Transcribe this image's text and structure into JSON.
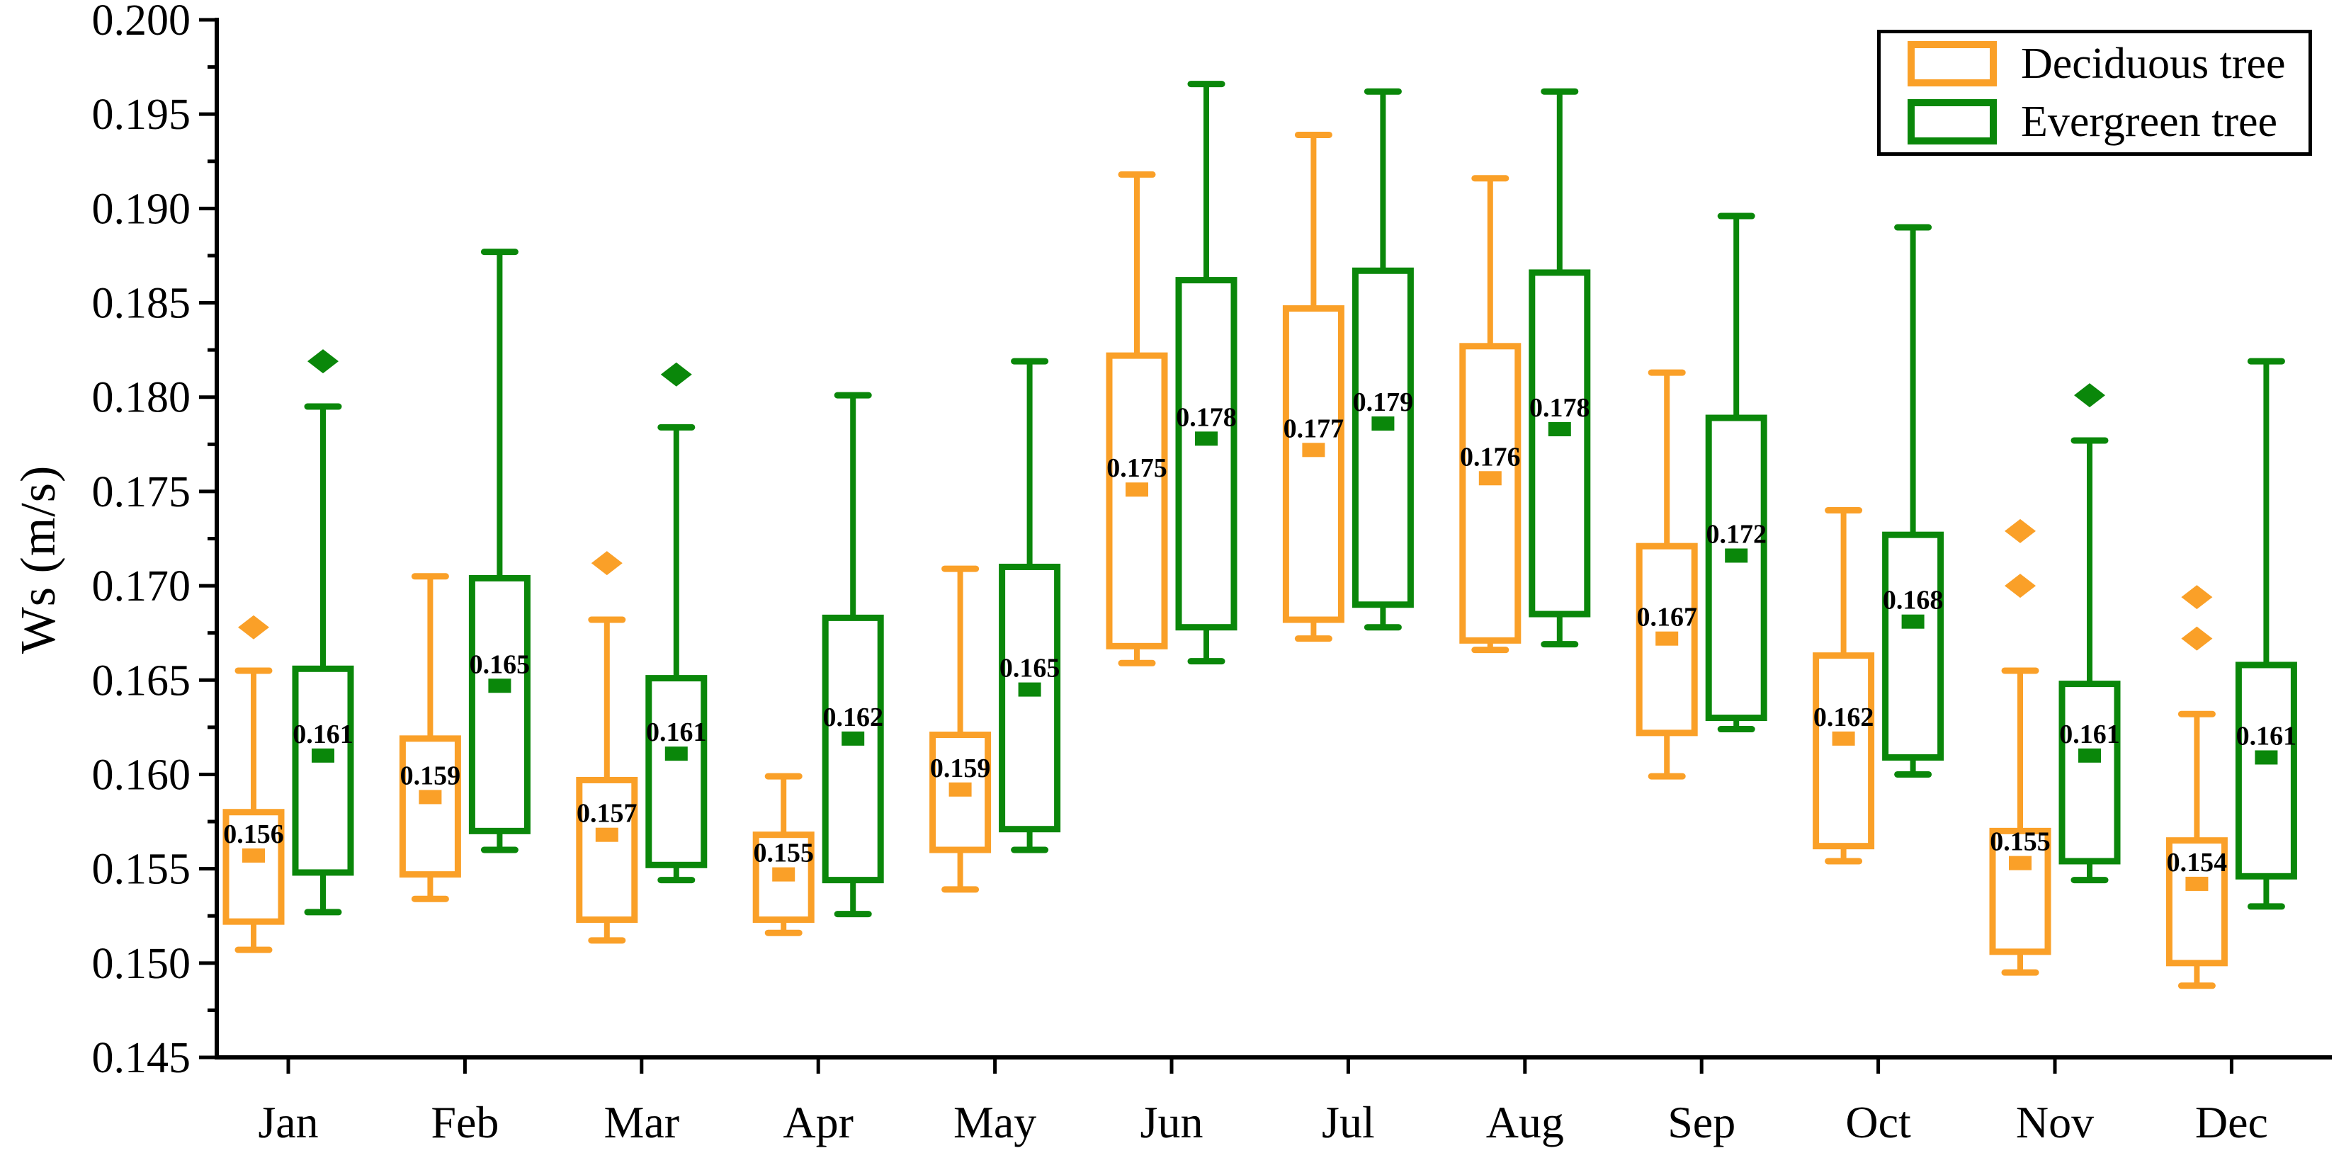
{
  "figure": {
    "background": "#FFFFFF"
  },
  "y_axis": {
    "title": "Ws (m/s)",
    "min": 0.145,
    "max": 0.2,
    "major_step": 0.005,
    "minor_step": 0.0025,
    "tick_labels": [
      "0.145",
      "0.150",
      "0.155",
      "0.160",
      "0.165",
      "0.170",
      "0.175",
      "0.180",
      "0.185",
      "0.190",
      "0.195",
      "0.200"
    ]
  },
  "x_axis": {
    "tick_labels": [
      "Jan",
      "Feb",
      "Mar",
      "Apr",
      "May",
      "Jun",
      "Jul",
      "Aug",
      "Sep",
      "Oct",
      "Nov",
      "Dec"
    ]
  },
  "legend": {
    "items": [
      {
        "label": "Deciduous tree",
        "color": "#FAA028"
      },
      {
        "label": "Evergreen tree",
        "color": "#0A870A"
      }
    ]
  },
  "chart_data": {
    "type": "box",
    "title": "",
    "xlabel": "",
    "ylabel": "Ws (m/s)",
    "ylim": [
      0.145,
      0.2
    ],
    "grid": false,
    "legend_position": "top-right",
    "categories": [
      "Jan",
      "Feb",
      "Mar",
      "Apr",
      "May",
      "Jun",
      "Jul",
      "Aug",
      "Sep",
      "Oct",
      "Nov",
      "Dec"
    ],
    "series": [
      {
        "name": "Deciduous tree",
        "color": "#FAA028",
        "boxes": [
          {
            "low": 0.1507,
            "q1": 0.1522,
            "mean": 0.1557,
            "q3": 0.158,
            "high": 0.1655,
            "outliers": [
              0.1678
            ],
            "mean_label": "0.156"
          },
          {
            "low": 0.1534,
            "q1": 0.1547,
            "mean": 0.1588,
            "q3": 0.1619,
            "high": 0.1705,
            "outliers": [],
            "mean_label": "0.159"
          },
          {
            "low": 0.1512,
            "q1": 0.1523,
            "mean": 0.1568,
            "q3": 0.1597,
            "high": 0.1682,
            "outliers": [
              0.1712
            ],
            "mean_label": "0.157"
          },
          {
            "low": 0.1516,
            "q1": 0.1523,
            "mean": 0.1547,
            "q3": 0.1568,
            "high": 0.1599,
            "outliers": [],
            "mean_label": "0.155"
          },
          {
            "low": 0.1539,
            "q1": 0.156,
            "mean": 0.1592,
            "q3": 0.1621,
            "high": 0.1709,
            "outliers": [],
            "mean_label": "0.159"
          },
          {
            "low": 0.1659,
            "q1": 0.1668,
            "mean": 0.1751,
            "q3": 0.1822,
            "high": 0.1918,
            "outliers": [],
            "mean_label": "0.175"
          },
          {
            "low": 0.1672,
            "q1": 0.1682,
            "mean": 0.1772,
            "q3": 0.1847,
            "high": 0.1939,
            "outliers": [],
            "mean_label": "0.177"
          },
          {
            "low": 0.1666,
            "q1": 0.1671,
            "mean": 0.1757,
            "q3": 0.1827,
            "high": 0.1916,
            "outliers": [],
            "mean_label": "0.176"
          },
          {
            "low": 0.1599,
            "q1": 0.1622,
            "mean": 0.1672,
            "q3": 0.1721,
            "high": 0.1813,
            "outliers": [],
            "mean_label": "0.167"
          },
          {
            "low": 0.1554,
            "q1": 0.1562,
            "mean": 0.1619,
            "q3": 0.1663,
            "high": 0.174,
            "outliers": [],
            "mean_label": "0.162"
          },
          {
            "low": 0.1495,
            "q1": 0.1506,
            "mean": 0.1553,
            "q3": 0.157,
            "high": 0.1655,
            "outliers": [
              0.17,
              0.1729
            ],
            "mean_label": "0.155"
          },
          {
            "low": 0.1488,
            "q1": 0.15,
            "mean": 0.1542,
            "q3": 0.1565,
            "high": 0.1632,
            "outliers": [
              0.1672,
              0.1694
            ],
            "mean_label": "0.154"
          }
        ]
      },
      {
        "name": "Evergreen tree",
        "color": "#0A870A",
        "boxes": [
          {
            "low": 0.1527,
            "q1": 0.1548,
            "mean": 0.161,
            "q3": 0.1656,
            "high": 0.1795,
            "outliers": [
              0.1819
            ],
            "mean_label": "0.161"
          },
          {
            "low": 0.156,
            "q1": 0.157,
            "mean": 0.1647,
            "q3": 0.1704,
            "high": 0.1877,
            "outliers": [],
            "mean_label": "0.165"
          },
          {
            "low": 0.1544,
            "q1": 0.1552,
            "mean": 0.1611,
            "q3": 0.1651,
            "high": 0.1784,
            "outliers": [
              0.1812
            ],
            "mean_label": "0.161"
          },
          {
            "low": 0.1526,
            "q1": 0.1544,
            "mean": 0.1619,
            "q3": 0.1683,
            "high": 0.1801,
            "outliers": [],
            "mean_label": "0.162"
          },
          {
            "low": 0.156,
            "q1": 0.1571,
            "mean": 0.1645,
            "q3": 0.171,
            "high": 0.1819,
            "outliers": [],
            "mean_label": "0.165"
          },
          {
            "low": 0.166,
            "q1": 0.1678,
            "mean": 0.1778,
            "q3": 0.1862,
            "high": 0.1966,
            "outliers": [],
            "mean_label": "0.178"
          },
          {
            "low": 0.1678,
            "q1": 0.169,
            "mean": 0.1786,
            "q3": 0.1867,
            "high": 0.1962,
            "outliers": [],
            "mean_label": "0.179"
          },
          {
            "low": 0.1669,
            "q1": 0.1685,
            "mean": 0.1783,
            "q3": 0.1866,
            "high": 0.1962,
            "outliers": [],
            "mean_label": "0.178"
          },
          {
            "low": 0.1624,
            "q1": 0.163,
            "mean": 0.1716,
            "q3": 0.1789,
            "high": 0.1896,
            "outliers": [],
            "mean_label": "0.172"
          },
          {
            "low": 0.16,
            "q1": 0.1609,
            "mean": 0.1681,
            "q3": 0.1727,
            "high": 0.189,
            "outliers": [],
            "mean_label": "0.168"
          },
          {
            "low": 0.1544,
            "q1": 0.1554,
            "mean": 0.161,
            "q3": 0.1648,
            "high": 0.1777,
            "outliers": [
              0.1801
            ],
            "mean_label": "0.161"
          },
          {
            "low": 0.153,
            "q1": 0.1546,
            "mean": 0.1609,
            "q3": 0.1658,
            "high": 0.1819,
            "outliers": [],
            "mean_label": "0.161"
          }
        ]
      }
    ]
  }
}
